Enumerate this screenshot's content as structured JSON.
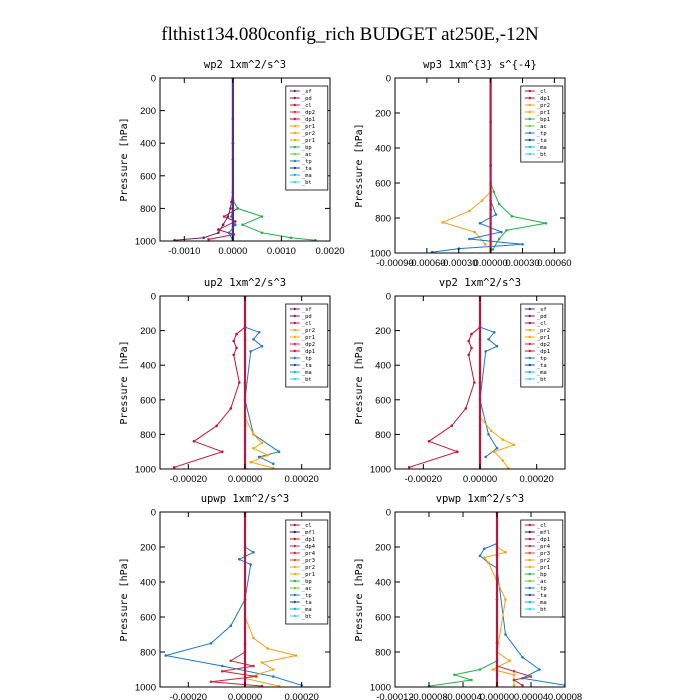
{
  "figure_title": "flthist134.080config_rich  BUDGET at250E,-12N",
  "colors": {
    "_sf": "#5a2d82",
    "_pd": "#7a1f5c",
    "_cl": "#c0143c",
    "_dp2": "#e0283a",
    "_pr1": "#ffa500",
    "_pr2": "#f2a01a",
    "_pr3": "#e8461e",
    "_pr4": "#c8283c",
    "_bp": "#22b14c",
    "_bp1": "#22b14c",
    "_ac": "#66cc33",
    "_tp": "#1e78c8",
    "_ta": "#1c3fa8",
    "_ma": "#00bcd4",
    "_bt": "#33ccff",
    "_dp1": "#c8102e",
    "_mfl": "#3a0f6e",
    "_dp4": "#d12a46"
  },
  "chart_data": [
    {
      "type": "line",
      "title": "wp2  1xm^2/s^3",
      "ylabel": "Pressure [hPa]",
      "xlim": [
        -0.0015,
        0.002
      ],
      "ylim": [
        1000,
        0
      ],
      "xticks": [
        -0.001,
        0.0,
        0.001,
        0.002
      ],
      "xtick_labels": [
        "-0.0010",
        "0.0000",
        "0.0010",
        "0.0020"
      ],
      "yticks": [
        0,
        200,
        400,
        600,
        800,
        1000
      ],
      "legend_position": "top-right",
      "legend": [
        "_sf",
        "_pd",
        "_cl",
        "_dp2",
        "_dp1",
        "_pr1",
        "_pr2",
        "_pr1",
        "_bp",
        "_ac",
        "_tp",
        "_ta",
        "_ma",
        "_bt"
      ],
      "series": [
        {
          "name": "_pd",
          "x": [
            0.0,
            0.0,
            0.0,
            -3e-05,
            -5e-05,
            -0.0001,
            -0.0002,
            -0.0003,
            -0.0006,
            -0.0012
          ],
          "y": [
            0,
            400,
            700,
            760,
            800,
            850,
            900,
            950,
            980,
            995
          ]
        },
        {
          "name": "_cl",
          "x": [
            0.0,
            0.0,
            0.0,
            0.0001,
            -0.00018,
            5e-05,
            -0.0003,
            2e-05,
            -0.0005
          ],
          "y": [
            0,
            400,
            750,
            800,
            850,
            880,
            930,
            960,
            990
          ]
        },
        {
          "name": "_bp",
          "x": [
            0.0,
            0.0,
            0.0,
            0.0001,
            0.0006,
            0.0002,
            0.0006,
            0.0012,
            0.0017
          ],
          "y": [
            0,
            400,
            750,
            800,
            850,
            900,
            950,
            980,
            995
          ]
        },
        {
          "name": "_tp",
          "x": [
            0.0,
            0.0,
            0.0,
            -3e-05,
            5e-05,
            -8e-05,
            0.0
          ],
          "y": [
            0,
            400,
            800,
            850,
            900,
            950,
            1000
          ]
        },
        {
          "name": "_sf",
          "x": [
            0.0,
            0.0,
            0.0,
            0.0,
            0.0
          ],
          "y": [
            0,
            250,
            500,
            750,
            1000
          ]
        }
      ]
    },
    {
      "type": "line",
      "title": "wp3  1xm^{3} s^{-4}",
      "ylabel": "Pressure [hPa]",
      "xlim": [
        -0.0009,
        0.0007
      ],
      "ylim": [
        1000,
        0
      ],
      "xticks": [
        -0.0009,
        -0.0006,
        -0.0003,
        0.0,
        0.0003,
        0.0006
      ],
      "xtick_labels": [
        "-0.00090",
        "-0.00060",
        "-0.00030",
        "0.00000",
        "0.00030",
        "0.00060"
      ],
      "yticks": [
        0,
        200,
        400,
        600,
        800,
        1000
      ],
      "legend_position": "top-right",
      "legend": [
        "_cl",
        "_dp1",
        "_pr2",
        "_pr1",
        "_bp1",
        "_ac",
        "_tp",
        "_ta",
        "_ma",
        "_bt"
      ],
      "series": [
        {
          "name": "_pr2",
          "x": [
            0.0,
            0.0,
            0.0,
            -8e-05,
            -0.0002,
            -0.00045,
            -0.00015,
            -5e-05
          ],
          "y": [
            0,
            500,
            650,
            700,
            760,
            825,
            880,
            950
          ]
        },
        {
          "name": "_bp1",
          "x": [
            0.0,
            0.0,
            0.0,
            3e-05,
            8e-05,
            0.0002,
            0.00052,
            0.00015,
            8e-05,
            2e-05
          ],
          "y": [
            0,
            500,
            600,
            650,
            720,
            790,
            830,
            870,
            920,
            980
          ]
        },
        {
          "name": "_tp",
          "x": [
            0.0,
            0.0,
            5e-05,
            -0.0001,
            0.0001,
            -0.0002,
            0.0003,
            -0.0003,
            -0.00055
          ],
          "y": [
            0,
            700,
            780,
            830,
            880,
            920,
            950,
            975,
            995
          ]
        },
        {
          "name": "_cl",
          "x": [
            0.0,
            0.0,
            0.0,
            0.0,
            0.0
          ],
          "y": [
            0,
            250,
            500,
            750,
            1000
          ]
        }
      ]
    },
    {
      "type": "line",
      "title": "up2  1xm^2/s^3",
      "ylabel": "Pressure [hPa]",
      "xlim": [
        -0.0003,
        0.0003
      ],
      "ylim": [
        1000,
        0
      ],
      "xticks": [
        -0.0002,
        0.0,
        0.0002
      ],
      "xtick_labels": [
        "-0.00020",
        "0.00000",
        "0.00020"
      ],
      "yticks": [
        0,
        200,
        400,
        600,
        800,
        1000
      ],
      "legend_position": "top-right",
      "legend": [
        "_sf",
        "_pd",
        "_cl",
        "_pr2",
        "_pr1",
        "_dp2",
        "_dp1",
        "_tp",
        "_ta",
        "_ma",
        "_bt"
      ],
      "series": [
        {
          "name": "_dp1",
          "x": [
            0.0,
            0.0,
            -3e-05,
            -4e-05,
            -3e-05,
            -4e-05,
            -2e-05,
            -5e-05,
            -0.0001,
            -0.00018,
            -8e-05,
            -0.00025
          ],
          "y": [
            0,
            180,
            220,
            260,
            300,
            340,
            500,
            650,
            750,
            840,
            900,
            990
          ]
        },
        {
          "name": "_tp",
          "x": [
            0.0,
            0.0,
            5e-05,
            3e-05,
            6e-05,
            2e-05,
            0.0,
            3e-05,
            0.00012,
            5e-05,
            0.0001
          ],
          "y": [
            0,
            180,
            210,
            250,
            290,
            320,
            600,
            800,
            900,
            930,
            970
          ]
        },
        {
          "name": "_pr1",
          "x": [
            0.0,
            0.0,
            3e-05,
            6e-05,
            3e-05,
            8e-05,
            2e-05,
            0.0001
          ],
          "y": [
            0,
            700,
            800,
            850,
            880,
            920,
            960,
            995
          ]
        },
        {
          "name": "_cl",
          "x": [
            0.0,
            0.0,
            0.0,
            0.0,
            0.0
          ],
          "y": [
            0,
            250,
            500,
            750,
            1000
          ]
        }
      ]
    },
    {
      "type": "line",
      "title": "vp2  1xm^2/s^3",
      "ylabel": "Pressure [hPa]",
      "xlim": [
        -0.0003,
        0.0003
      ],
      "ylim": [
        1000,
        0
      ],
      "xticks": [
        -0.0002,
        0.0,
        0.0002
      ],
      "xtick_labels": [
        "-0.00020",
        "0.00000",
        "0.00020"
      ],
      "yticks": [
        0,
        200,
        400,
        600,
        800,
        1000
      ],
      "legend_position": "top-right",
      "legend": [
        "_sf",
        "_pd",
        "_cl",
        "_pr2",
        "_pr1",
        "_dp2",
        "_dp1",
        "_tp",
        "_ta",
        "_ma",
        "_bt"
      ],
      "series": [
        {
          "name": "_dp1",
          "x": [
            0.0,
            0.0,
            -3e-05,
            -4e-05,
            -3e-05,
            -4e-05,
            -2e-05,
            -5e-05,
            -0.0001,
            -0.00018,
            -8e-05,
            -0.00025
          ],
          "y": [
            0,
            180,
            220,
            260,
            300,
            340,
            500,
            650,
            750,
            840,
            900,
            990
          ]
        },
        {
          "name": "_tp",
          "x": [
            0.0,
            0.0,
            5e-05,
            3e-05,
            6e-05,
            2e-05,
            0.0,
            3e-05,
            6e-05,
            2e-05
          ],
          "y": [
            0,
            180,
            210,
            250,
            290,
            320,
            600,
            800,
            880,
            930
          ]
        },
        {
          "name": "_pr1",
          "x": [
            0.0,
            0.0,
            4e-05,
            8e-05,
            0.00012,
            5e-05,
            8e-05,
            0.0001
          ],
          "y": [
            0,
            700,
            780,
            830,
            860,
            900,
            950,
            995
          ]
        },
        {
          "name": "_cl",
          "x": [
            0.0,
            0.0,
            0.0,
            0.0,
            0.0
          ],
          "y": [
            0,
            250,
            500,
            750,
            1000
          ]
        }
      ]
    },
    {
      "type": "line",
      "title": "upwp  1xm^2/s^3",
      "ylabel": "Pressure [hPa]",
      "xlim": [
        -0.0003,
        0.0003
      ],
      "ylim": [
        1000,
        0
      ],
      "xticks": [
        -0.0002,
        0.0,
        0.0002
      ],
      "xtick_labels": [
        "-0.00020",
        "0.00000",
        "0.00020"
      ],
      "yticks": [
        0,
        200,
        400,
        600,
        800,
        1000
      ],
      "legend_position": "top-right",
      "legend": [
        "_cl",
        "_mfl",
        "_dp1",
        "_dp4",
        "_pr4",
        "_pr3",
        "_pr2",
        "_pr1",
        "_bp",
        "_ac",
        "_tp",
        "_ta",
        "_ma",
        "_bt"
      ],
      "series": [
        {
          "name": "_tp",
          "x": [
            0.0,
            0.0,
            3e-05,
            -2e-05,
            2e-05,
            0.0,
            -5e-05,
            -0.00012,
            -0.00028,
            -8e-05,
            0.0001,
            0.0002
          ],
          "y": [
            0,
            200,
            230,
            270,
            300,
            500,
            650,
            750,
            820,
            880,
            940,
            990
          ]
        },
        {
          "name": "_pr2",
          "x": [
            0.0,
            0.0,
            3e-05,
            8e-05,
            0.00018,
            6e-05,
            0.0001,
            0.0,
            0.00012
          ],
          "y": [
            0,
            600,
            720,
            780,
            820,
            860,
            900,
            950,
            995
          ]
        },
        {
          "name": "_pr4",
          "x": [
            0.0,
            0.0,
            -5e-05,
            3e-05,
            -8e-05,
            4e-05,
            -0.00012,
            6e-05
          ],
          "y": [
            0,
            800,
            850,
            880,
            910,
            940,
            970,
            995
          ]
        },
        {
          "name": "_cl",
          "x": [
            0.0,
            0.0,
            0.0,
            0.0,
            0.0
          ],
          "y": [
            0,
            250,
            500,
            750,
            1000
          ]
        }
      ]
    },
    {
      "type": "line",
      "title": "vpwp  1xm^2/s^3",
      "ylabel": "Pressure [hPa]",
      "xlim": [
        -0.00012,
        8e-05
      ],
      "ylim": [
        1000,
        0
      ],
      "xticks": [
        -0.00012,
        -8e-05,
        -4e-05,
        0.0,
        4e-05,
        8e-05
      ],
      "xtick_labels": [
        "-0.00012",
        "-0.00008",
        "-0.00004",
        "0.00000",
        "0.00004",
        "0.00008"
      ],
      "yticks": [
        0,
        200,
        400,
        600,
        800,
        1000
      ],
      "legend_position": "top-right",
      "legend": [
        "_cl",
        "_mfl",
        "_dp1",
        "_pr4",
        "_pr3",
        "_pr2",
        "_pr1",
        "_bp",
        "_ac",
        "_tp",
        "_ta",
        "_ma",
        "_bt"
      ],
      "series": [
        {
          "name": "_tp",
          "x": [
            0.0,
            0.0,
            -1.5e-05,
            -2e-05,
            -1e-05,
            0.0,
            1e-05,
            3e-05,
            5e-05,
            3e-05,
            8e-05
          ],
          "y": [
            0,
            180,
            210,
            250,
            290,
            320,
            700,
            830,
            900,
            950,
            990
          ]
        },
        {
          "name": "_pr2",
          "x": [
            0.0,
            0.0,
            1e-05,
            -1.5e-05,
            -1e-05,
            1e-05,
            0.0,
            1.5e-05,
            -5e-06,
            2e-05,
            2e-05
          ],
          "y": [
            0,
            200,
            230,
            260,
            290,
            500,
            800,
            850,
            900,
            930,
            990
          ]
        },
        {
          "name": "_bp",
          "x": [
            0.0,
            0.0,
            -2e-05,
            -5e-05,
            -3e-05,
            -8e-05
          ],
          "y": [
            0,
            850,
            900,
            930,
            960,
            995
          ]
        },
        {
          "name": "_pr4",
          "x": [
            0.0,
            0.0,
            2e-05,
            4e-05,
            2e-05,
            3e-05
          ],
          "y": [
            0,
            880,
            910,
            940,
            960,
            990
          ]
        },
        {
          "name": "_cl",
          "x": [
            0.0,
            0.0,
            0.0,
            0.0,
            0.0
          ],
          "y": [
            0,
            250,
            500,
            750,
            1000
          ]
        }
      ]
    }
  ]
}
